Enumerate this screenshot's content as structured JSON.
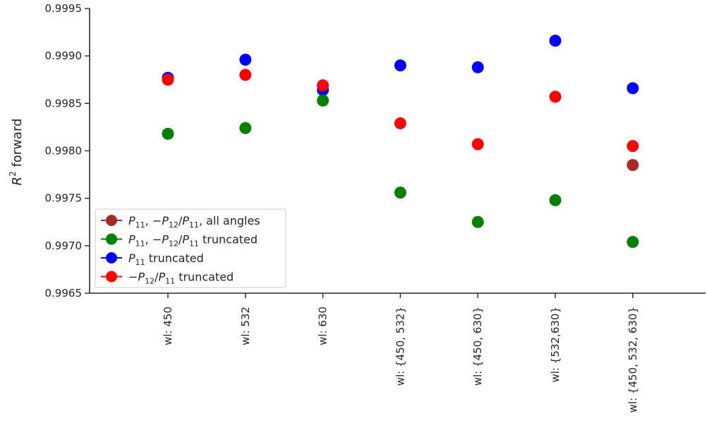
{
  "chart_data": {
    "type": "scatter",
    "title": "",
    "xlabel": "",
    "ylabel_main": "R",
    "ylabel_sup": "2",
    "ylabel_rest": " forward",
    "ylim": [
      0.9965,
      0.9995
    ],
    "yticks": [
      "0.9965",
      "0.9970",
      "0.9975",
      "0.9980",
      "0.9985",
      "0.9990",
      "0.9995"
    ],
    "ytick_values": [
      0.9965,
      0.997,
      0.9975,
      0.998,
      0.9985,
      0.999,
      0.9995
    ],
    "categories": [
      "wl: 450",
      "wl: 532",
      "wl: 630",
      "wl: {450, 532}",
      "wl: {450, 630}",
      "wl: {532,630}",
      "wl: {450, 532, 630}"
    ],
    "grid": false,
    "legend_position": "lower-left",
    "series": [
      {
        "color": "#a52a2a",
        "legend_parts": [
          [
            "P",
            "11",
            ""
          ],
          [
            ", −",
            "",
            ""
          ],
          [
            "P",
            "12",
            ""
          ],
          [
            "/",
            "",
            ""
          ],
          [
            "P",
            "11",
            ""
          ],
          [
            ", all angles",
            "",
            ""
          ]
        ],
        "values": [
          null,
          null,
          null,
          null,
          null,
          null,
          0.99785
        ]
      },
      {
        "color": "#008000",
        "legend_parts": [
          [
            "P",
            "11",
            ""
          ],
          [
            ", −",
            "",
            ""
          ],
          [
            "P",
            "12",
            ""
          ],
          [
            "/",
            "",
            ""
          ],
          [
            "P",
            "11",
            ""
          ],
          [
            " truncated",
            "",
            ""
          ]
        ],
        "values": [
          0.99818,
          0.99824,
          0.99853,
          0.99756,
          0.99725,
          0.99748,
          0.99704
        ]
      },
      {
        "color": "#0000ff",
        "legend_parts": [
          [
            "P",
            "11",
            ""
          ],
          [
            " truncated",
            "",
            ""
          ]
        ],
        "values": [
          0.99877,
          0.99896,
          0.99864,
          0.9989,
          0.99888,
          0.99916,
          0.99866
        ]
      },
      {
        "color": "#ff0000",
        "legend_parts": [
          [
            "−",
            "",
            ""
          ],
          [
            "P",
            "12",
            ""
          ],
          [
            "/",
            "",
            ""
          ],
          [
            "P",
            "11",
            ""
          ],
          [
            " truncated",
            "",
            ""
          ]
        ],
        "values": [
          0.99875,
          0.9988,
          0.99869,
          0.99829,
          0.99807,
          0.99857,
          0.99805
        ]
      }
    ],
    "draw_order": [
      2,
      3,
      1,
      0
    ]
  }
}
